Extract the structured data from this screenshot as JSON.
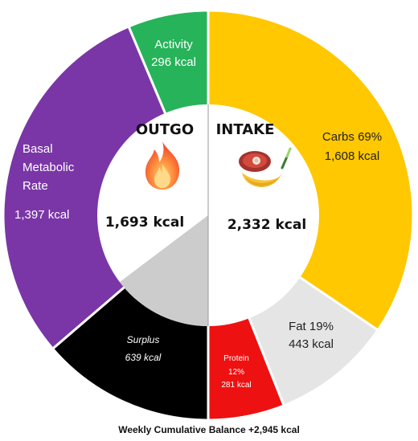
{
  "chart_data": {
    "type": "pie",
    "footer": "Weekly Cumulative Balance +2,945 kcal",
    "outgo": {
      "title": "OUTGO",
      "total": "1,693 kcal",
      "icon": "fire-icon",
      "segments": [
        {
          "name": "Activity",
          "value_label": "296 kcal",
          "value": 296,
          "color": "#27b35a"
        },
        {
          "name": "Basal Metabolic Rate",
          "lines": [
            "Basal",
            "Metabolic",
            "Rate"
          ],
          "value_label": "1,397 kcal",
          "value": 1397,
          "color": "#7a36a6"
        },
        {
          "name": "Surplus",
          "value_label": "639 kcal",
          "value": 639,
          "color": "#000000"
        }
      ]
    },
    "intake": {
      "title": "INTAKE",
      "total": "2,332 kcal",
      "icon": "food-icon",
      "segments": [
        {
          "name": "Carbs",
          "pct_label": "69%",
          "value_label": "1,608 kcal",
          "value": 1608,
          "color": "#ffc800"
        },
        {
          "name": "Fat",
          "pct_label": "19%",
          "value_label": "443 kcal",
          "value": 443,
          "color": "#e5e5e5"
        },
        {
          "name": "Protein",
          "pct_label": "12%",
          "value_label": "281 kcal",
          "value": 281,
          "color": "#ee1111"
        }
      ]
    }
  }
}
